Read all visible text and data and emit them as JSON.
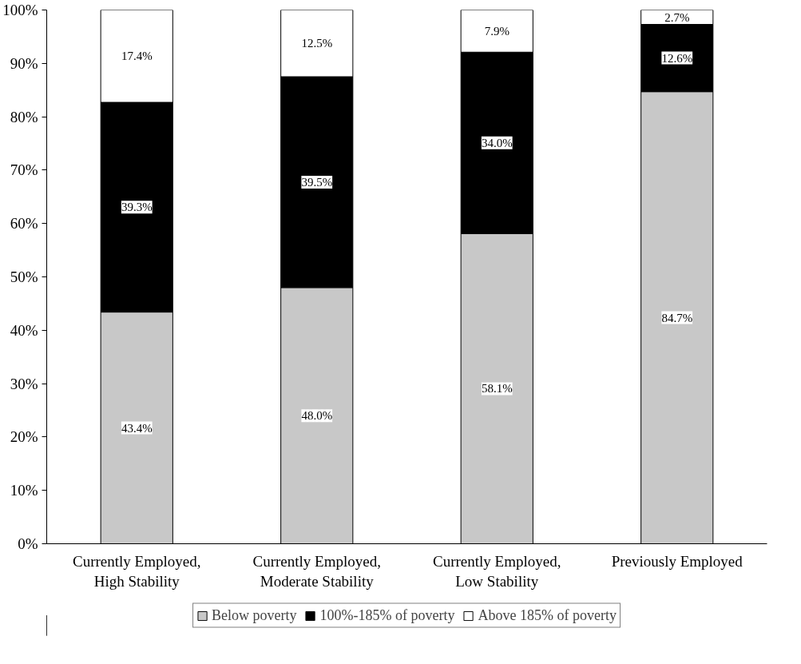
{
  "chart_data": {
    "type": "bar",
    "stacked": true,
    "categories": [
      "Currently Employed,\nHigh Stability",
      "Currently Employed,\nModerate Stability",
      "Currently Employed,\nLow Stability",
      "Previously Employed"
    ],
    "series": [
      {
        "name": "Below poverty",
        "color": "#c8c8c8",
        "values": [
          43.4,
          48.0,
          58.1,
          84.7
        ],
        "value_labels": [
          "43.4%",
          "48.0%",
          "58.1%",
          "84.7%"
        ]
      },
      {
        "name": "100%-185% of poverty",
        "color": "#000000",
        "values": [
          39.3,
          39.5,
          34.0,
          12.6
        ],
        "value_labels": [
          "39.3%",
          "39.5%",
          "34.0%",
          "12.6%"
        ]
      },
      {
        "name": "Above 185% of poverty",
        "color": "#ffffff",
        "values": [
          17.4,
          12.5,
          7.9,
          2.7
        ],
        "value_labels": [
          "17.4%",
          "12.5%",
          "7.9%",
          "2.7%"
        ]
      }
    ],
    "ylim": [
      0,
      100
    ],
    "yticks": [
      {
        "value": 0,
        "label": "0%"
      },
      {
        "value": 10,
        "label": "10%"
      },
      {
        "value": 20,
        "label": "20%"
      },
      {
        "value": 30,
        "label": "30%"
      },
      {
        "value": 40,
        "label": "40%"
      },
      {
        "value": 50,
        "label": "50%"
      },
      {
        "value": 60,
        "label": "60%"
      },
      {
        "value": 70,
        "label": "70%"
      },
      {
        "value": 80,
        "label": "80%"
      },
      {
        "value": 90,
        "label": "90%"
      },
      {
        "value": 100,
        "label": "100%"
      }
    ],
    "grid": false,
    "legend": "bottom"
  }
}
